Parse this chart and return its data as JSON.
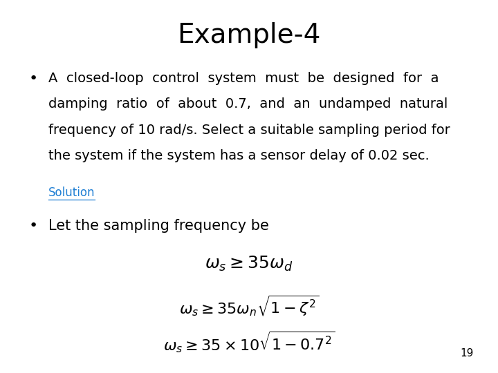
{
  "title": "Example-4",
  "title_fontsize": 28,
  "title_color": "#000000",
  "bg_color": "#ffffff",
  "solution_label": "Solution",
  "solution_color": "#1F7FD4",
  "bullet2_text": "Let the sampling frequency be",
  "eq1": "$\\omega_s \\geq 35\\omega_d$",
  "eq2": "$\\omega_s \\geq 35\\omega_n\\sqrt{1-\\zeta^2}$",
  "eq3": "$\\omega_s \\geq 35 \\times 10\\sqrt{1-0.7^2}$",
  "page_number": "19",
  "body_fontsize": 14,
  "eq_fontsize": 16,
  "small_fontsize": 11,
  "bullet1_lines": [
    "A  closed-loop  control  system  must  be  designed  for  a",
    "damping  ratio  of  about  0.7,  and  an  undamped  natural",
    "frequency of 10 rad/s. Select a suitable sampling period for",
    "the system if the system has a sensor delay of 0.02 sec."
  ]
}
